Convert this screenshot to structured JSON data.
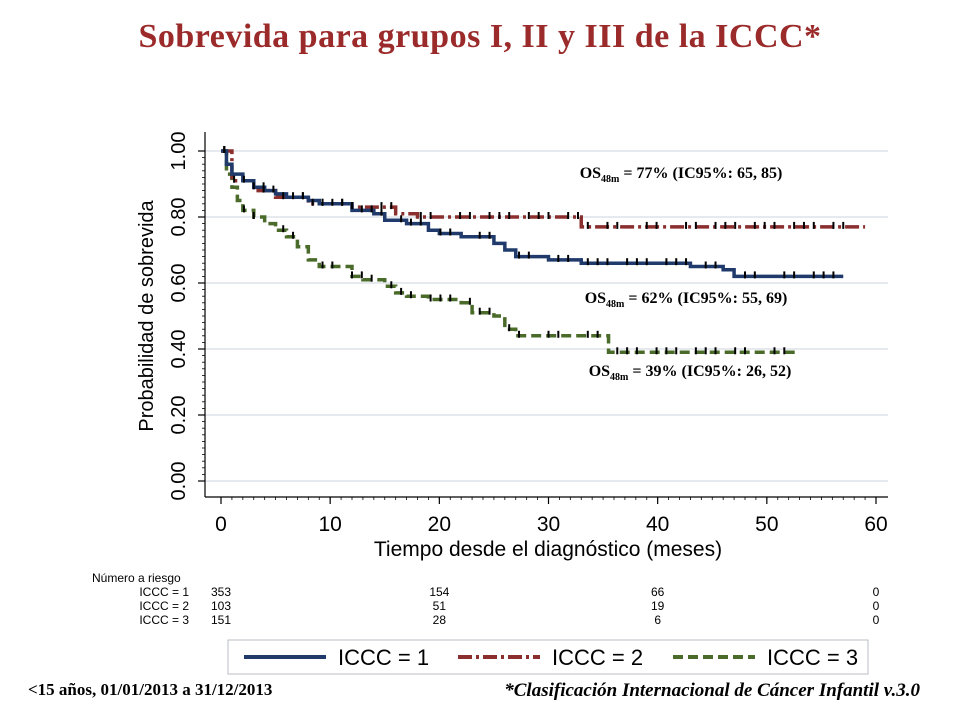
{
  "title": "Sobrevida para grupos I, II y III de la ICCC*",
  "footer_left": "<15 años, 01/01/2013 a 31/12/2013",
  "footer_right": "*Clasificación Internacional de Cáncer Infantil v.3.0",
  "annotations": [
    {
      "prefix": "OS",
      "sub": "48m",
      "text": " = 77% (IC95%: 65, 85)"
    },
    {
      "prefix": "OS",
      "sub": "48m",
      "text": " = 62% (IC95%: 55, 69)"
    },
    {
      "prefix": "OS",
      "sub": "48m",
      "text": " = 39% (IC95%: 26, 52)"
    }
  ],
  "risk_table": {
    "title": "Número a riesgo",
    "rows": [
      {
        "label": "ICCC = 1",
        "values": [
          "353",
          "154",
          "66",
          "0"
        ]
      },
      {
        "label": "ICCC = 2",
        "values": [
          "103",
          "51",
          "19",
          "0"
        ]
      },
      {
        "label": "ICCC = 3",
        "values": [
          "151",
          "28",
          "6",
          "0"
        ]
      }
    ]
  },
  "colors": {
    "series1": "#1f3a6b",
    "series2": "#8b2e2e",
    "series3": "#4a6b2a",
    "title": "#9b2a2a",
    "grid": "#dde3ea"
  },
  "chart_data": {
    "type": "line",
    "subtype": "kaplan-meier-step",
    "xlabel": "Tiempo desde el diagnóstico (meses)",
    "ylabel": "Probabilidad de sobrevida",
    "xlim": [
      0,
      60
    ],
    "ylim": [
      0,
      1
    ],
    "xticks": [
      "0",
      "10",
      "20",
      "30",
      "40",
      "50",
      "60"
    ],
    "yticks": [
      "0.00",
      "0.20",
      "0.40",
      "0.60",
      "0.80",
      "1.00"
    ],
    "grid": true,
    "legend_position": "bottom",
    "series": [
      {
        "name": "ICCC = 1",
        "style": "solid",
        "x": [
          0,
          0.5,
          1,
          2,
          3,
          4,
          5,
          6,
          7,
          8,
          9,
          10,
          12,
          14,
          15,
          17,
          19,
          20,
          22,
          24,
          25,
          26,
          27,
          30,
          33,
          36,
          40,
          43,
          46,
          47,
          50,
          53,
          57
        ],
        "y": [
          1.0,
          0.96,
          0.93,
          0.91,
          0.89,
          0.88,
          0.87,
          0.86,
          0.86,
          0.85,
          0.84,
          0.84,
          0.82,
          0.81,
          0.79,
          0.78,
          0.76,
          0.75,
          0.74,
          0.74,
          0.72,
          0.7,
          0.68,
          0.67,
          0.66,
          0.66,
          0.66,
          0.65,
          0.64,
          0.62,
          0.62,
          0.62,
          0.62
        ]
      },
      {
        "name": "ICCC = 2",
        "style": "dash-dot",
        "x": [
          0,
          1,
          3,
          5,
          8,
          10,
          12,
          14,
          16,
          18,
          20,
          24,
          28,
          30,
          33,
          36,
          40,
          45,
          50,
          55,
          59
        ],
        "y": [
          1.0,
          0.91,
          0.88,
          0.86,
          0.84,
          0.84,
          0.83,
          0.83,
          0.81,
          0.8,
          0.8,
          0.8,
          0.8,
          0.8,
          0.77,
          0.77,
          0.77,
          0.77,
          0.77,
          0.77,
          0.77
        ]
      },
      {
        "name": "ICCC = 3",
        "style": "dash",
        "x": [
          0,
          0.5,
          1,
          1.5,
          2,
          3,
          4,
          5,
          6,
          7,
          8,
          9,
          11,
          12,
          13,
          15,
          16,
          17,
          19,
          22,
          23,
          25,
          26,
          27,
          30,
          33,
          35.5,
          40,
          45,
          50,
          53
        ],
        "y": [
          1.0,
          0.93,
          0.89,
          0.85,
          0.82,
          0.8,
          0.78,
          0.76,
          0.74,
          0.71,
          0.67,
          0.65,
          0.65,
          0.62,
          0.61,
          0.59,
          0.57,
          0.56,
          0.55,
          0.54,
          0.51,
          0.5,
          0.46,
          0.44,
          0.44,
          0.44,
          0.39,
          0.39,
          0.39,
          0.39,
          0.39
        ]
      }
    ]
  }
}
